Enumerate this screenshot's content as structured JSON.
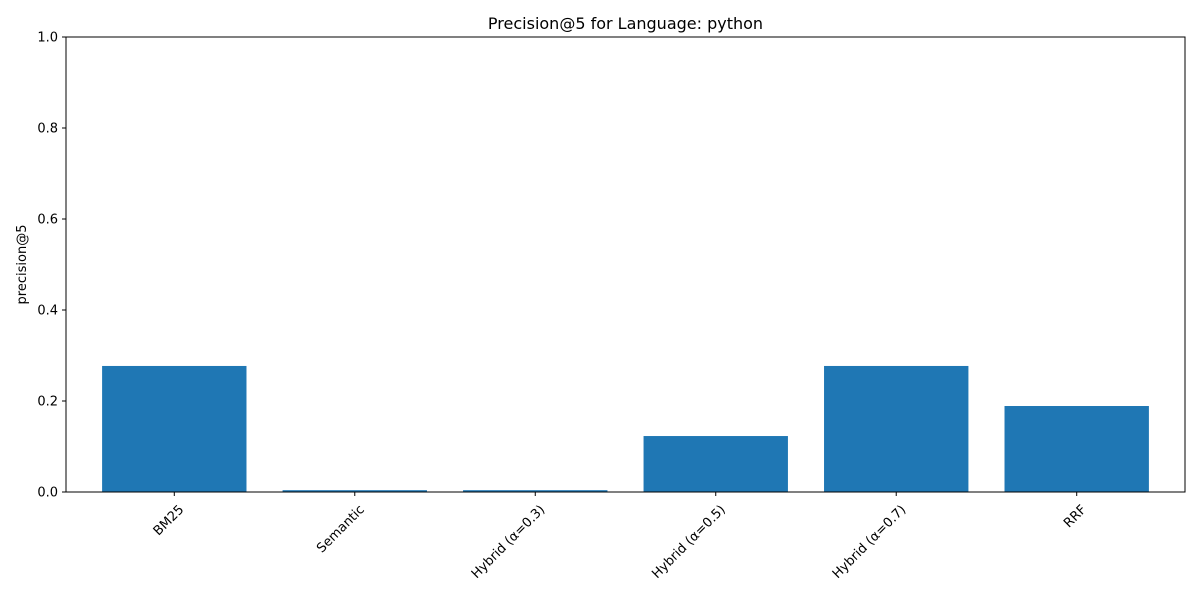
{
  "chart_data": {
    "type": "bar",
    "title": "Precision@5 for Language: python",
    "xlabel": "",
    "ylabel": "precision@5",
    "categories": [
      "BM25",
      "Semantic",
      "Hybrid (α=0.3)",
      "Hybrid (α=0.5)",
      "Hybrid (α=0.7)",
      "RRF"
    ],
    "values": [
      0.277,
      0.004,
      0.004,
      0.123,
      0.277,
      0.189
    ],
    "ylim": [
      0,
      1.0
    ],
    "yticks": [
      "0.0",
      "0.2",
      "0.4",
      "0.6",
      "0.8",
      "1.0"
    ],
    "grid": false,
    "bar_color": "#1f77b4",
    "x_tick_rotation_deg": 45
  }
}
